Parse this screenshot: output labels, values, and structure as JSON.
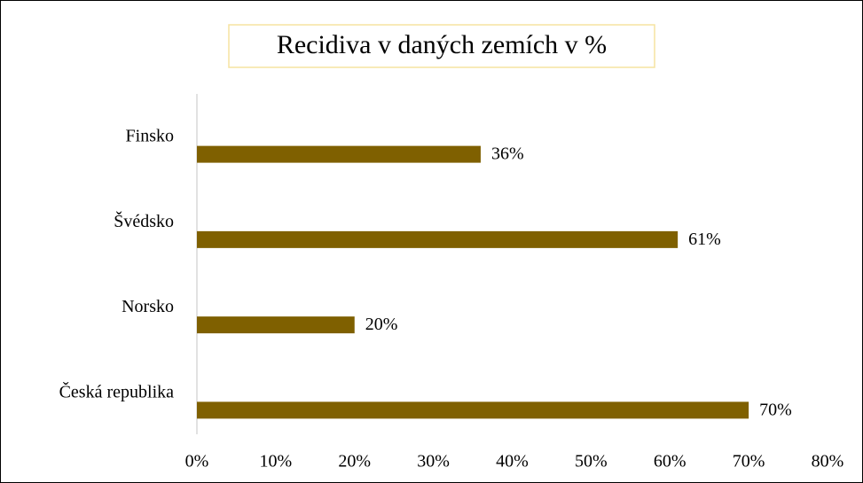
{
  "chart_data": {
    "type": "bar",
    "orientation": "horizontal",
    "title": "Recidiva v daných zemích v %",
    "categories": [
      "Finsko",
      "Švédsko",
      "Norsko",
      "Česká republika"
    ],
    "values": [
      36,
      61,
      20,
      70
    ],
    "value_labels": [
      "36%",
      "61%",
      "20%",
      "70%"
    ],
    "color": "#7f6000",
    "xlim": [
      0,
      80
    ],
    "xticks": [
      {
        "value": 0,
        "label": "0%"
      },
      {
        "value": 10,
        "label": "10%"
      },
      {
        "value": 20,
        "label": "20%"
      },
      {
        "value": 30,
        "label": "30%"
      },
      {
        "value": 40,
        "label": "40%"
      },
      {
        "value": 50,
        "label": "50%"
      },
      {
        "value": 60,
        "label": "60%"
      },
      {
        "value": 70,
        "label": "70%"
      },
      {
        "value": 80,
        "label": "80%"
      }
    ],
    "grid": false
  }
}
